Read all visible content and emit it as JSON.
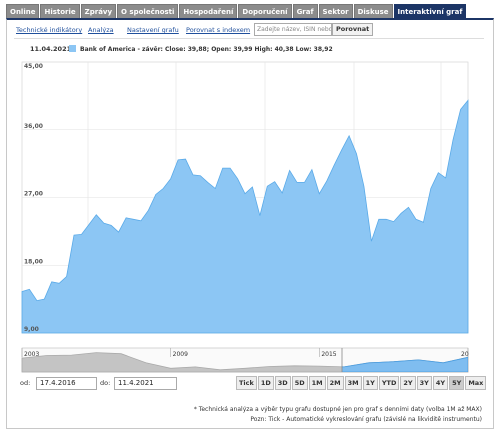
{
  "tabs": [
    "Online",
    "Historie",
    "Zprávy",
    "O společnosti",
    "Hospodaření",
    "Doporučení",
    "Graf",
    "Sektor",
    "Diskuse",
    "Interaktivní graf"
  ],
  "toolbar": {
    "links": [
      "Technické indikátory",
      "Analýza",
      "Nastavení grafu",
      "Porovnat s indexem"
    ],
    "search_placeholder": "Zadejte název, ISIN nebo",
    "button": "Porovnat"
  },
  "chart_data": {
    "type": "area",
    "date": "11.04.2021",
    "series": [
      {
        "name": "Bank of America - závěr: Close: 39,88; Open: 39,99 High: 40,38 Low: 38,92",
        "color": "#8cc6f4",
        "values": [
          14.5,
          14.8,
          13.3,
          13.5,
          15.8,
          15.6,
          16.5,
          22.0,
          22.1,
          23.4,
          24.7,
          23.6,
          23.3,
          22.4,
          24.3,
          24.1,
          23.9,
          25.3,
          27.4,
          28.2,
          29.5,
          32.0,
          32.1,
          30.0,
          29.9,
          29.0,
          28.2,
          30.9,
          30.9,
          29.5,
          27.5,
          28.4,
          24.6,
          28.5,
          29.1,
          27.6,
          30.6,
          29.0,
          29.0,
          30.7,
          27.5,
          29.2,
          31.3,
          33.3,
          35.2,
          32.8,
          28.5,
          21.2,
          24.1,
          24.1,
          23.8,
          24.9,
          25.7,
          24.1,
          23.7,
          28.2,
          30.3,
          29.6,
          34.7,
          38.7,
          39.9
        ]
      }
    ],
    "ylim": [
      9,
      45
    ],
    "yticks": [
      {
        "value": 45,
        "label": "45,00"
      },
      {
        "value": 36,
        "label": "36,00"
      },
      {
        "value": 27,
        "label": "27,00"
      },
      {
        "value": 18,
        "label": "18,00"
      },
      {
        "value": 9,
        "label": "9,00"
      }
    ],
    "grid": true
  },
  "navigator": {
    "categories": [
      "2003",
      null,
      null,
      null,
      null,
      null,
      "2009",
      null,
      null,
      null,
      null,
      null,
      "2015",
      null,
      null,
      null,
      null,
      null,
      "20"
    ],
    "values": [
      38,
      45,
      46,
      53,
      50,
      25,
      10,
      14,
      6,
      10,
      15,
      17,
      16,
      14,
      25,
      28,
      33,
      25,
      40
    ],
    "ylim": [
      0,
      60
    ]
  },
  "controls": {
    "from_label": "od:",
    "from": "17.4.2016",
    "to_label": "do:",
    "to": "11.4.2021",
    "ranges": [
      "Tick",
      "1D",
      "3D",
      "5D",
      "1M",
      "2M",
      "3M",
      "1Y",
      "YTD",
      "2Y",
      "3Y",
      "4Y",
      "5Y",
      "Max"
    ],
    "active_range": "5Y"
  },
  "footnotes": [
    "* Technická analýza a výběr typu grafu dostupné jen pro graf s denními daty (volba 1M až MAX)",
    "Pozn: Tick - Automatické vykreslování grafu (závislé na likviditě instrumentu)"
  ]
}
